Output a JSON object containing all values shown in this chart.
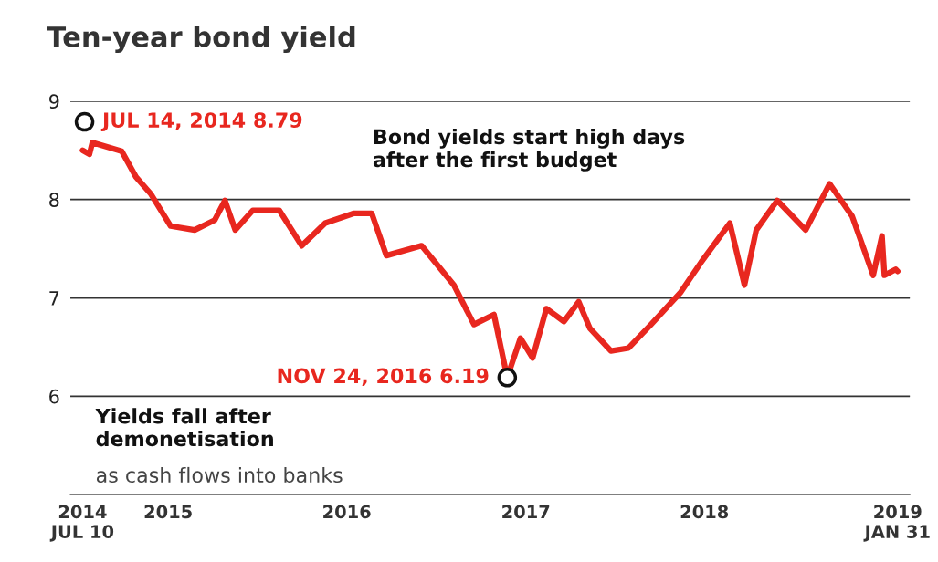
{
  "chart_data": {
    "type": "line",
    "title": "Ten-year bond yield",
    "x": [
      "2014-07-10",
      "2014-07-24",
      "2014-07-30",
      "2014-09-28",
      "2014-10-27",
      "2014-11-26",
      "2015-01-06",
      "2015-02-24",
      "2015-04-06",
      "2015-04-27",
      "2015-05-18",
      "2015-06-23",
      "2015-08-16",
      "2015-10-01",
      "2015-11-18",
      "2016-01-16",
      "2016-02-21",
      "2016-03-22",
      "2016-06-02",
      "2016-08-07",
      "2016-09-17",
      "2016-10-28",
      "2016-11-24",
      "2016-12-21",
      "2017-01-15",
      "2017-02-12",
      "2017-03-20",
      "2017-04-19",
      "2017-05-12",
      "2017-06-24",
      "2017-07-30",
      "2017-09-14",
      "2017-11-14",
      "2017-12-25",
      "2018-02-22",
      "2018-03-24",
      "2018-04-17",
      "2018-05-30",
      "2018-07-27",
      "2018-09-14",
      "2018-10-30",
      "2018-12-12",
      "2018-12-30",
      "2019-01-04",
      "2019-01-27",
      "2019-01-31"
    ],
    "series": [
      {
        "color": "#e8271f",
        "values": [
          8.5,
          8.46,
          8.58,
          8.49,
          8.23,
          8.06,
          7.73,
          7.69,
          7.79,
          7.99,
          7.69,
          7.89,
          7.89,
          7.53,
          7.76,
          7.86,
          7.86,
          7.43,
          7.53,
          7.13,
          6.73,
          6.83,
          6.19,
          6.59,
          6.39,
          6.89,
          6.76,
          6.96,
          6.69,
          6.46,
          6.49,
          6.73,
          7.06,
          7.36,
          7.76,
          7.13,
          7.69,
          7.99,
          7.69,
          8.16,
          7.83,
          7.23,
          7.63,
          7.23,
          7.29,
          7.27
        ]
      }
    ],
    "xlim": [
      "2014-06-15",
      "2019-02-25"
    ],
    "xticks": [
      {
        "value": "2014-07-10",
        "label": "2014\nJUL 10"
      },
      {
        "value": "2015-01-01",
        "label": "2015"
      },
      {
        "value": "2016-01-01",
        "label": "2016"
      },
      {
        "value": "2017-01-01",
        "label": "2017"
      },
      {
        "value": "2018-01-01",
        "label": "2018"
      },
      {
        "value": "2019-01-31",
        "label": "2019\nJAN 31"
      }
    ],
    "ylim": [
      5,
      9
    ],
    "yticks": [
      6,
      7,
      8,
      9
    ],
    "grid": "y",
    "annotations": [
      {
        "text": "JUL 14, 2014 8.79",
        "x": "2014-07-14",
        "y": 8.79
      },
      "Bond yields start high days\nafter the first budget",
      {
        "text": "NOV 24, 2016 6.19",
        "x": "2016-11-24",
        "y": 6.19
      },
      "Yields fall after\ndemonetisation",
      "as cash flows into banks"
    ]
  }
}
